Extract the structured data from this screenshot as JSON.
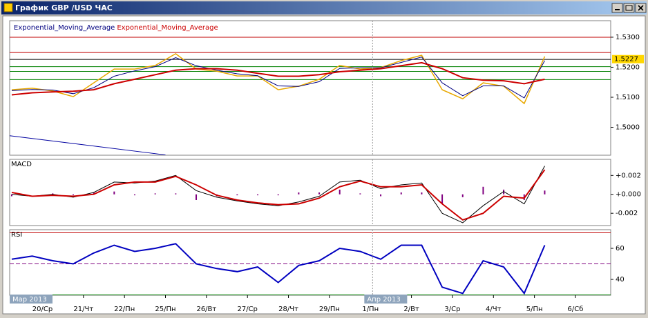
{
  "window": {
    "title": "График GBP /USD ЧАС"
  },
  "chart_data": [
    {
      "type": "line",
      "x": [
        -0.75,
        -0.25,
        0.25,
        0.75,
        1.25,
        1.75,
        2.25,
        2.75,
        3.25,
        3.75,
        4.25,
        4.75,
        5.25,
        5.75,
        6.25,
        6.75,
        7.25,
        7.75,
        8.25,
        8.75,
        9.25,
        9.75,
        10.25,
        10.75,
        11.25,
        11.75,
        12.25
      ],
      "xlim": [
        -0.8,
        13.86
      ],
      "ylim": [
        1.4907,
        1.5355
      ],
      "yticks": [
        {
          "value": 1.53,
          "label": "1.5300"
        },
        {
          "value": 1.52,
          "label": "1.5200"
        },
        {
          "value": 1.51,
          "label": "1.5100"
        },
        {
          "value": 1.5,
          "label": "1.5000"
        }
      ],
      "last_price": 1.5227,
      "levels": [
        {
          "value": 1.53,
          "color": "#c00000"
        },
        {
          "value": 1.5249,
          "color": "#c00000"
        },
        {
          "value": 1.5226,
          "color": "#000000"
        },
        {
          "value": 1.5202,
          "color": "#008000"
        },
        {
          "value": 1.5186,
          "color": "#008000"
        },
        {
          "value": 1.5159,
          "color": "#008000"
        }
      ],
      "trendline": {
        "x": [
          -0.8,
          3.0
        ],
        "values": [
          1.4972,
          1.4908
        ],
        "color": "#0000a0"
      },
      "series": [
        {
          "color": "#e8a800",
          "values": [
            1.5125,
            1.513,
            1.5121,
            1.5102,
            1.5148,
            1.5194,
            1.5194,
            1.5206,
            1.5245,
            1.5194,
            1.5187,
            1.5171,
            1.5171,
            1.5125,
            1.5137,
            1.516,
            1.5206,
            1.5194,
            1.5199,
            1.5222,
            1.524,
            1.5125,
            1.5095,
            1.5148,
            1.5137,
            1.5079,
            1.5236
          ]
        },
        {
          "name": "Exponential_Moving_Average",
          "color": "#000080",
          "values": [
            1.5122,
            1.5126,
            1.5124,
            1.5112,
            1.5132,
            1.517,
            1.5188,
            1.5202,
            1.5232,
            1.5205,
            1.519,
            1.5178,
            1.5172,
            1.5138,
            1.5136,
            1.5152,
            1.5196,
            1.5198,
            1.5198,
            1.5216,
            1.5234,
            1.5148,
            1.5105,
            1.5138,
            1.5138,
            1.5098,
            1.5222
          ]
        },
        {
          "name": "Exponential_Moving_Average",
          "color": "#cc0000",
          "values": [
            1.5108,
            1.5115,
            1.5118,
            1.512,
            1.5125,
            1.5145,
            1.516,
            1.5175,
            1.519,
            1.5195,
            1.5195,
            1.519,
            1.518,
            1.517,
            1.517,
            1.5175,
            1.5185,
            1.519,
            1.5195,
            1.5205,
            1.5215,
            1.5195,
            1.5165,
            1.5157,
            1.5155,
            1.5145,
            1.516
          ]
        }
      ]
    },
    {
      "type": "line",
      "title": "MACD",
      "x": [
        -0.75,
        -0.25,
        0.25,
        0.75,
        1.25,
        1.75,
        2.25,
        2.75,
        3.25,
        3.75,
        4.25,
        4.75,
        5.25,
        5.75,
        6.25,
        6.75,
        7.25,
        7.75,
        8.25,
        8.75,
        9.25,
        9.75,
        10.25,
        10.75,
        11.25,
        11.75,
        12.25
      ],
      "xlim": [
        -0.8,
        13.86
      ],
      "ylim": [
        -0.0033,
        0.0037
      ],
      "yticks": [
        {
          "value": 0.002,
          "label": "+0.002"
        },
        {
          "value": 0,
          "label": "+0.000"
        },
        {
          "value": -0.002,
          "label": "-0.002"
        }
      ],
      "series": [
        {
          "type": "bar",
          "color": "#800080",
          "values": [
            -0.0002,
            0,
            0.0001,
            -0.0001,
            0.0002,
            0.0003,
            -0.0001,
            0.0001,
            0.0001,
            -0.0006,
            -0.0002,
            -0.0001,
            -0.0001,
            -0.0001,
            0.0002,
            0.0002,
            0.0005,
            0.0001,
            -0.0002,
            0.0002,
            0.0002,
            -0.001,
            -0.0003,
            0.0008,
            0.0005,
            -0.0006,
            0.0004
          ]
        },
        {
          "color": "#000000",
          "values": [
            0,
            -0.0002,
            0,
            -0.0003,
            0.0002,
            0.0013,
            0.0012,
            0.0014,
            0.002,
            0.0004,
            -0.0003,
            -0.0007,
            -0.001,
            -0.0012,
            -0.0008,
            -0.0002,
            0.0013,
            0.0015,
            0.0006,
            0.001,
            0.0012,
            -0.002,
            -0.003,
            -0.0012,
            0.0003,
            -0.001,
            0.003
          ]
        },
        {
          "color": "#cc0000",
          "values": [
            0.0002,
            -0.0002,
            -0.0001,
            -0.0002,
            0,
            0.001,
            0.0013,
            0.0013,
            0.0019,
            0.001,
            -0.0001,
            -0.0006,
            -0.0009,
            -0.0011,
            -0.001,
            -0.0004,
            0.0008,
            0.0014,
            0.0008,
            0.0008,
            0.001,
            -0.001,
            -0.0027,
            -0.002,
            -0.0002,
            -0.0004,
            0.0026
          ]
        }
      ]
    },
    {
      "type": "line",
      "title": "RSI",
      "x": [
        -0.75,
        -0.25,
        0.25,
        0.75,
        1.25,
        1.75,
        2.25,
        2.75,
        3.25,
        3.75,
        4.25,
        4.75,
        5.25,
        5.75,
        6.25,
        6.75,
        7.25,
        7.75,
        8.25,
        8.75,
        9.25,
        9.75,
        10.25,
        10.75,
        11.25,
        11.75,
        12.25
      ],
      "xlim": [
        -0.8,
        13.86
      ],
      "ylim": [
        29.8,
        72
      ],
      "yticks": [
        60,
        40
      ],
      "levels": [
        {
          "value": 70,
          "color": "#c00000"
        },
        {
          "value": 50,
          "color": "#800080",
          "dash": true
        },
        {
          "value": 30,
          "color": "#008000"
        }
      ],
      "series": [
        {
          "color": "#0000c0",
          "values": [
            53,
            55,
            52,
            50,
            57,
            62,
            58,
            60,
            63,
            50,
            47,
            45,
            48,
            38,
            49,
            52,
            60,
            58,
            53,
            62,
            62,
            35,
            31,
            52,
            48,
            31,
            62
          ]
        }
      ],
      "xticks": [
        {
          "value": 0,
          "label": "20/Ср"
        },
        {
          "value": 1,
          "label": "21/Чт"
        },
        {
          "value": 2,
          "label": "22/Пн"
        },
        {
          "value": 3,
          "label": "25/Пн"
        },
        {
          "value": 4,
          "label": "26/Вт"
        },
        {
          "value": 5,
          "label": "27/Ср"
        },
        {
          "value": 6,
          "label": "28/Чт"
        },
        {
          "value": 7,
          "label": "29/Пн"
        },
        {
          "value": 8,
          "label": "1/Пн"
        },
        {
          "value": 9,
          "label": "2/Вт"
        },
        {
          "value": 10,
          "label": "3/Ср"
        },
        {
          "value": 11,
          "label": "4/Чт"
        },
        {
          "value": 12,
          "label": "5/Пн"
        },
        {
          "value": 13,
          "label": "6/Сб"
        }
      ],
      "period_labels": [
        {
          "text": "Мар 2013",
          "x": -0.8
        },
        {
          "text": "Апр 2013",
          "x": 7.85
        }
      ]
    }
  ]
}
